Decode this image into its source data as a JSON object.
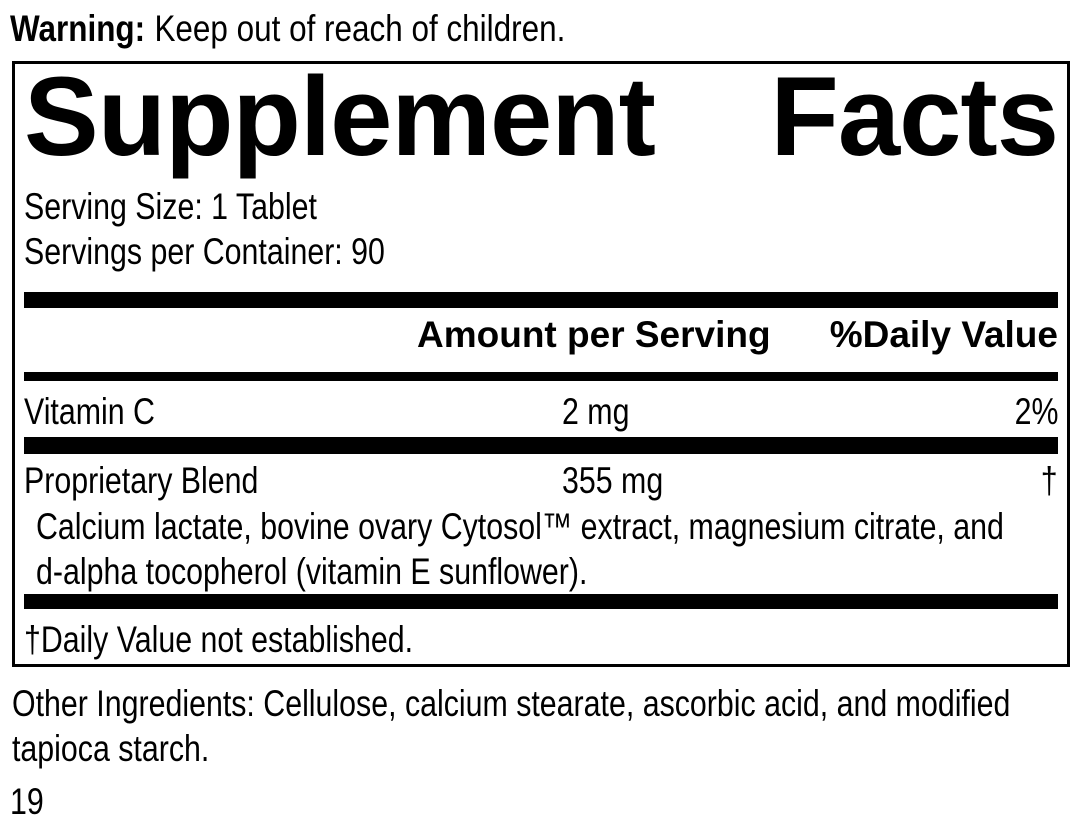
{
  "warning": {
    "label": "Warning:",
    "text": "Keep out of reach of children."
  },
  "panel": {
    "title": {
      "word1": "Supplement",
      "word2": "Facts"
    },
    "serving_size": "Serving Size: 1 Tablet",
    "servings_per_container": "Servings per Container: 90",
    "header": {
      "amount": "Amount per Serving",
      "daily_value": "%Daily Value"
    },
    "rows": [
      {
        "name": "Vitamin C",
        "amount": "2 mg",
        "daily_value": "2%"
      },
      {
        "name": "Proprietary Blend",
        "amount": "355 mg",
        "daily_value": "†"
      }
    ],
    "blend_description": {
      "line1": "Calcium lactate, bovine ovary Cytosol™ extract, magnesium citrate, and",
      "line2": "d-alpha tocopherol (vitamin E sunflower)."
    },
    "footnote": "†Daily Value not established."
  },
  "other_ingredients": {
    "line1": "Other Ingredients: Cellulose, calcium stearate, ascorbic acid, and modified",
    "line2": "tapioca starch."
  },
  "page_number": "19",
  "colors": {
    "text": "#000000",
    "background": "#ffffff",
    "rule_bars": "#000000"
  }
}
